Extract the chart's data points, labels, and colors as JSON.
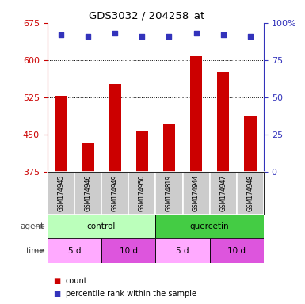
{
  "title": "GDS3032 / 204258_at",
  "samples": [
    "GSM174945",
    "GSM174946",
    "GSM174949",
    "GSM174950",
    "GSM174819",
    "GSM174944",
    "GSM174947",
    "GSM174948"
  ],
  "counts": [
    528,
    432,
    552,
    458,
    472,
    608,
    576,
    488
  ],
  "percentile_ranks": [
    92,
    91,
    93,
    91,
    91,
    93,
    92,
    91
  ],
  "ylim_left": [
    375,
    675
  ],
  "ylim_right": [
    0,
    100
  ],
  "yticks_left": [
    375,
    450,
    525,
    600,
    675
  ],
  "yticks_right": [
    0,
    25,
    50,
    75,
    100
  ],
  "right_ytick_labels": [
    "0",
    "25",
    "50",
    "75",
    "100%"
  ],
  "bar_color": "#cc0000",
  "dot_color": "#3333bb",
  "bar_bottom": 375,
  "agent_groups": [
    {
      "label": "control",
      "start": 0,
      "end": 4,
      "color": "#bbffbb"
    },
    {
      "label": "quercetin",
      "start": 4,
      "end": 8,
      "color": "#44cc44"
    }
  ],
  "time_groups": [
    {
      "label": "5 d",
      "start": 0,
      "end": 2,
      "color": "#ffaaff"
    },
    {
      "label": "10 d",
      "start": 2,
      "end": 4,
      "color": "#dd55dd"
    },
    {
      "label": "5 d",
      "start": 4,
      "end": 6,
      "color": "#ffaaff"
    },
    {
      "label": "10 d",
      "start": 6,
      "end": 8,
      "color": "#dd55dd"
    }
  ],
  "legend_count_label": "count",
  "legend_pct_label": "percentile rank within the sample",
  "agent_label": "agent",
  "time_label": "time",
  "tick_color_left": "#cc0000",
  "tick_color_right": "#3333bb",
  "sample_bg_color": "#cccccc",
  "grid_yticks": [
    450,
    525,
    600
  ],
  "fig_width": 3.85,
  "fig_height": 3.84,
  "fig_dpi": 100
}
